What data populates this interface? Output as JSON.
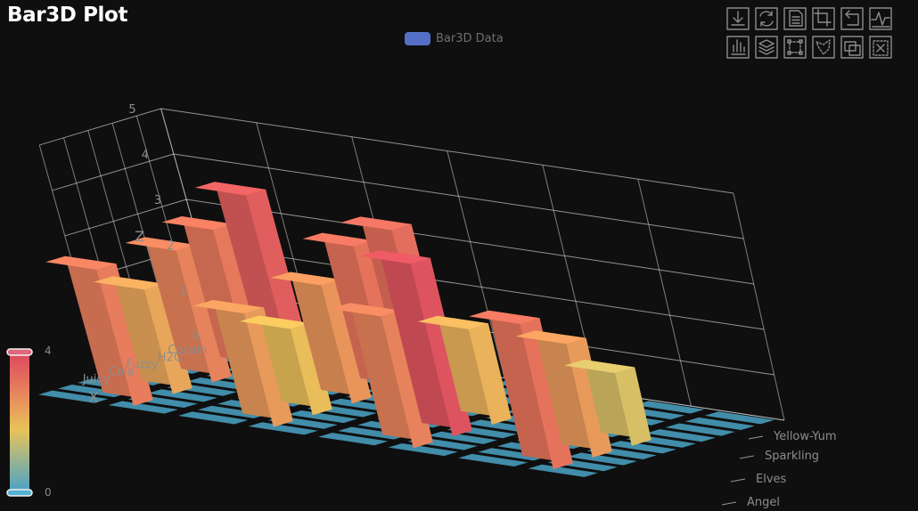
{
  "chart_data": {
    "type": "bar3d",
    "title": "Bar3D Plot",
    "legend": [
      "Bar3D Data"
    ],
    "xlabel": "X",
    "ylabel": "",
    "zlabel": "Z",
    "x_categories": [
      "Cocain",
      "H2O",
      "Fuzzy",
      "Cola",
      "Juicy"
    ],
    "y_categories": [
      "Angel",
      "Elves",
      "Sparkling",
      "Yellow-Yum"
    ],
    "zlim": [
      0,
      5
    ],
    "z_ticks": [
      "0",
      "1",
      "2",
      "3",
      "4",
      "5"
    ],
    "visual_map": {
      "min": "0",
      "max": "4",
      "colors": [
        "#4aa3c6",
        "#e9c35a",
        "#e77d5c",
        "#dc4a5e"
      ]
    },
    "grid": true,
    "series": [
      {
        "name": "Bar3D Data",
        "data": [
          {
            "x": "Cocain",
            "y": "Yellow-Yum",
            "z": 3.6
          },
          {
            "x": "Cocain",
            "y": "Sparkling",
            "z": 3.3
          },
          {
            "x": "H2O",
            "y": "Yellow-Yum",
            "z": 3.1
          },
          {
            "x": "H2O",
            "y": "Sparkling",
            "z": 3.2
          },
          {
            "x": "Fuzzy",
            "y": "Yellow-Yum",
            "z": 2.9
          },
          {
            "x": "Fuzzy",
            "y": "Sparkling",
            "z": 2.6
          },
          {
            "x": "Fuzzy",
            "y": "Elves",
            "z": 2.1
          },
          {
            "x": "Fuzzy",
            "y": "Angel",
            "z": 1.6
          },
          {
            "x": "Cola",
            "y": "Yellow-Yum",
            "z": 2.3
          },
          {
            "x": "Cola",
            "y": "Sparkling",
            "z": 1.9
          },
          {
            "x": "Cola",
            "y": "Elves",
            "z": 3.8
          },
          {
            "x": "Cola",
            "y": "Angel",
            "z": 2.5
          },
          {
            "x": "Juicy",
            "y": "Yellow-Yum",
            "z": 3.0
          },
          {
            "x": "Juicy",
            "y": "Sparkling",
            "z": 2.5
          },
          {
            "x": "Juicy",
            "y": "Elves",
            "z": 2.9
          },
          {
            "x": "Juicy",
            "y": "Angel",
            "z": 3.2
          }
        ]
      }
    ]
  },
  "toolbox": {
    "icons": [
      "download-icon",
      "refresh-icon",
      "data-view-icon",
      "crop-icon",
      "undo-icon",
      "line-chart-icon",
      "bar-chart-icon",
      "stack-icon",
      "rect-select-icon",
      "lasso-select-icon",
      "keep-select-icon",
      "clear-select-icon"
    ]
  }
}
